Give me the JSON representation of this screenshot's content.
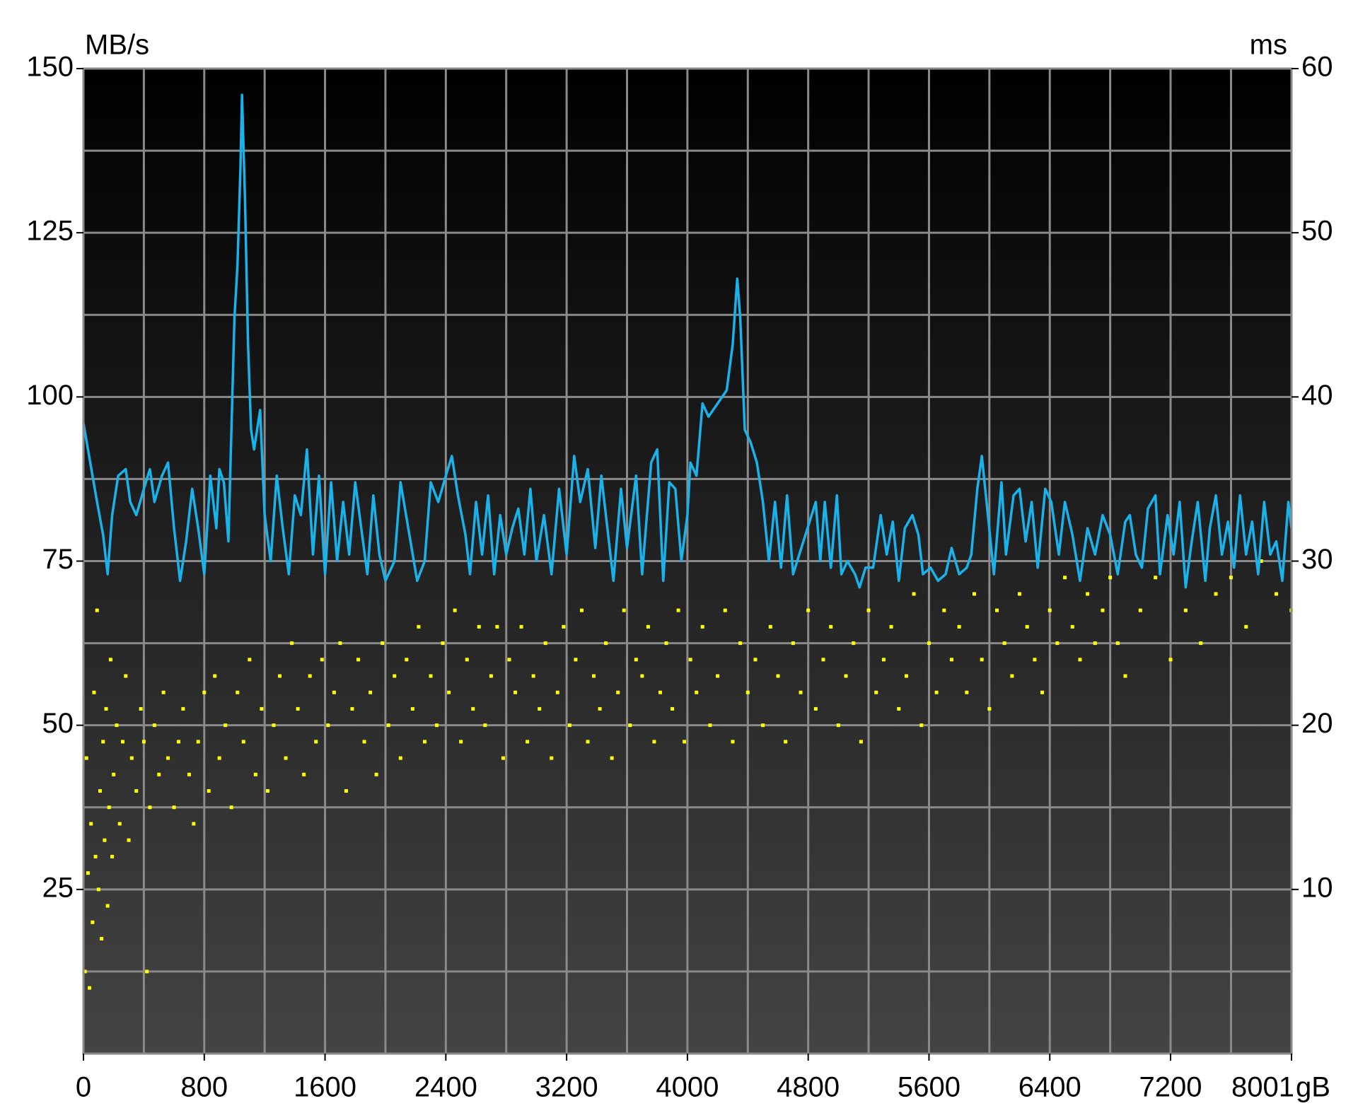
{
  "chart_data": {
    "type": "line",
    "y_label": "MB/s",
    "y2_label": "ms",
    "x_label": "gB",
    "xlim": [
      0,
      8001
    ],
    "xticks": [
      0,
      800,
      1600,
      2400,
      3200,
      4000,
      4800,
      5600,
      6400,
      7200,
      8001
    ],
    "ylim": [
      0,
      150
    ],
    "yticks": [
      25,
      50,
      75,
      100,
      125,
      150
    ],
    "y2lim": [
      0,
      60
    ],
    "y2ticks": [
      10,
      20,
      30,
      40,
      50,
      60
    ],
    "grid": true,
    "series": [
      {
        "type": "line",
        "color": "#19b2ea",
        "axis": "y",
        "x": [
          0,
          30,
          60,
          90,
          130,
          160,
          190,
          230,
          280,
          310,
          350,
          400,
          440,
          470,
          520,
          560,
          600,
          640,
          680,
          720,
          760,
          800,
          840,
          880,
          900,
          930,
          960,
          980,
          1000,
          1020,
          1040,
          1050,
          1070,
          1090,
          1110,
          1130,
          1170,
          1200,
          1240,
          1280,
          1320,
          1360,
          1400,
          1440,
          1480,
          1520,
          1560,
          1600,
          1640,
          1680,
          1720,
          1760,
          1800,
          1840,
          1880,
          1920,
          1960,
          2000,
          2060,
          2100,
          2210,
          2260,
          2300,
          2350,
          2400,
          2440,
          2480,
          2530,
          2560,
          2600,
          2640,
          2680,
          2720,
          2760,
          2800,
          2840,
          2880,
          2920,
          2960,
          3000,
          3050,
          3100,
          3150,
          3200,
          3250,
          3290,
          3340,
          3390,
          3430,
          3470,
          3510,
          3560,
          3600,
          3660,
          3700,
          3760,
          3800,
          3840,
          3880,
          3920,
          3960,
          4000,
          4020,
          4060,
          4100,
          4140,
          4200,
          4260,
          4300,
          4330,
          4350,
          4380,
          4420,
          4460,
          4500,
          4540,
          4580,
          4620,
          4660,
          4700,
          4850,
          4880,
          4910,
          4950,
          4990,
          5020,
          5060,
          5110,
          5140,
          5180,
          5230,
          5280,
          5320,
          5360,
          5400,
          5440,
          5490,
          5530,
          5560,
          5610,
          5660,
          5710,
          5750,
          5800,
          5850,
          5880,
          5920,
          5950,
          5990,
          6030,
          6080,
          6110,
          6160,
          6200,
          6240,
          6280,
          6320,
          6370,
          6410,
          6460,
          6500,
          6550,
          6600,
          6650,
          6700,
          6750,
          6800,
          6850,
          6900,
          6930,
          6970,
          7010,
          7050,
          7100,
          7130,
          7180,
          7220,
          7260,
          7300,
          7340,
          7380,
          7430,
          7460,
          7500,
          7540,
          7580,
          7620,
          7660,
          7700,
          7740,
          7780,
          7820,
          7860,
          7900,
          7940,
          7980,
          8001
        ],
        "values": [
          96,
          92,
          88,
          84,
          79,
          73,
          82,
          88,
          89,
          84,
          82,
          86,
          89,
          84,
          88,
          90,
          80,
          72,
          78,
          86,
          80,
          73,
          88,
          80,
          89,
          87,
          78,
          95,
          112,
          120,
          135,
          146,
          130,
          108,
          95,
          92,
          98,
          82,
          75,
          88,
          80,
          73,
          85,
          82,
          92,
          76,
          88,
          73,
          87,
          75,
          84,
          76,
          87,
          80,
          73,
          85,
          76,
          72,
          75,
          87,
          72,
          75,
          87,
          84,
          88,
          91,
          85,
          79,
          73,
          84,
          76,
          85,
          73,
          82,
          76,
          80,
          83,
          76,
          86,
          75,
          82,
          73,
          86,
          76,
          91,
          84,
          89,
          77,
          88,
          80,
          72,
          86,
          77,
          88,
          73,
          90,
          92,
          72,
          87,
          86,
          75,
          82,
          90,
          88,
          99,
          97,
          99,
          101,
          108,
          118,
          112,
          95,
          93,
          90,
          84,
          75,
          84,
          74,
          85,
          73,
          84,
          75,
          84,
          74,
          85,
          73,
          75,
          73,
          71,
          74,
          74,
          82,
          76,
          81,
          72,
          80,
          82,
          79,
          73,
          74,
          72,
          73,
          77,
          73,
          74,
          76,
          86,
          91,
          82,
          73,
          87,
          76,
          85,
          86,
          78,
          84,
          74,
          86,
          84,
          76,
          84,
          79,
          72,
          80,
          76,
          82,
          79,
          73,
          81,
          82,
          76,
          74,
          83,
          85,
          73,
          82,
          76,
          84,
          71,
          78,
          84,
          72,
          80,
          85,
          76,
          81,
          74,
          85,
          76,
          81,
          73,
          84,
          76,
          78,
          72,
          84,
          80
        ]
      },
      {
        "type": "scatter",
        "color": "#ffff00",
        "axis": "y2",
        "x": [
          10,
          20,
          30,
          40,
          50,
          60,
          70,
          80,
          90,
          100,
          110,
          120,
          130,
          140,
          150,
          160,
          170,
          180,
          190,
          200,
          220,
          240,
          260,
          280,
          300,
          320,
          350,
          380,
          400,
          420,
          440,
          470,
          500,
          530,
          560,
          600,
          630,
          660,
          700,
          730,
          760,
          800,
          830,
          870,
          900,
          940,
          980,
          1020,
          1060,
          1100,
          1140,
          1180,
          1220,
          1260,
          1300,
          1340,
          1380,
          1420,
          1460,
          1500,
          1540,
          1580,
          1620,
          1660,
          1700,
          1740,
          1780,
          1820,
          1860,
          1900,
          1940,
          1980,
          2020,
          2060,
          2100,
          2140,
          2180,
          2220,
          2260,
          2300,
          2340,
          2380,
          2420,
          2460,
          2500,
          2540,
          2580,
          2620,
          2660,
          2700,
          2740,
          2780,
          2820,
          2860,
          2900,
          2940,
          2980,
          3020,
          3060,
          3100,
          3140,
          3180,
          3220,
          3260,
          3300,
          3340,
          3380,
          3420,
          3460,
          3500,
          3540,
          3580,
          3620,
          3660,
          3700,
          3740,
          3780,
          3820,
          3860,
          3900,
          3940,
          3980,
          4020,
          4060,
          4100,
          4150,
          4200,
          4250,
          4300,
          4350,
          4400,
          4450,
          4500,
          4550,
          4600,
          4650,
          4700,
          4750,
          4800,
          4850,
          4900,
          4950,
          5000,
          5050,
          5100,
          5150,
          5200,
          5250,
          5300,
          5350,
          5400,
          5450,
          5500,
          5550,
          5600,
          5650,
          5700,
          5750,
          5800,
          5850,
          5900,
          5950,
          6000,
          6050,
          6100,
          6150,
          6200,
          6250,
          6300,
          6350,
          6400,
          6450,
          6500,
          6550,
          6600,
          6650,
          6700,
          6750,
          6800,
          6850,
          6900,
          7000,
          7100,
          7200,
          7300,
          7400,
          7500,
          7600,
          7700,
          7800,
          7900,
          8000
        ],
        "values": [
          5,
          18,
          11,
          4,
          14,
          8,
          22,
          12,
          27,
          10,
          16,
          7,
          19,
          13,
          21,
          9,
          15,
          24,
          12,
          17,
          20,
          14,
          19,
          23,
          13,
          18,
          16,
          21,
          19,
          5,
          15,
          20,
          17,
          22,
          18,
          15,
          19,
          21,
          17,
          14,
          19,
          22,
          16,
          23,
          18,
          20,
          15,
          22,
          19,
          24,
          17,
          21,
          16,
          20,
          23,
          18,
          25,
          21,
          17,
          23,
          19,
          24,
          20,
          22,
          25,
          16,
          21,
          24,
          19,
          22,
          17,
          25,
          20,
          23,
          18,
          24,
          21,
          26,
          19,
          23,
          20,
          25,
          22,
          27,
          19,
          24,
          21,
          26,
          20,
          23,
          26,
          18,
          24,
          22,
          26,
          19,
          23,
          21,
          25,
          18,
          22,
          26,
          20,
          24,
          27,
          19,
          23,
          21,
          25,
          18,
          22,
          27,
          20,
          24,
          23,
          26,
          19,
          22,
          25,
          21,
          27,
          19,
          24,
          22,
          26,
          20,
          23,
          27,
          19,
          25,
          22,
          24,
          20,
          26,
          23,
          19,
          25,
          22,
          27,
          21,
          24,
          26,
          20,
          23,
          25,
          19,
          27,
          22,
          24,
          26,
          21,
          23,
          28,
          20,
          25,
          22,
          27,
          24,
          26,
          22,
          28,
          24,
          21,
          27,
          25,
          23,
          28,
          26,
          24,
          22,
          27,
          25,
          29,
          26,
          24,
          28,
          25,
          27,
          29,
          25,
          23,
          27,
          29,
          24,
          27,
          25,
          28,
          29,
          26,
          30,
          28,
          27
        ]
      }
    ]
  }
}
